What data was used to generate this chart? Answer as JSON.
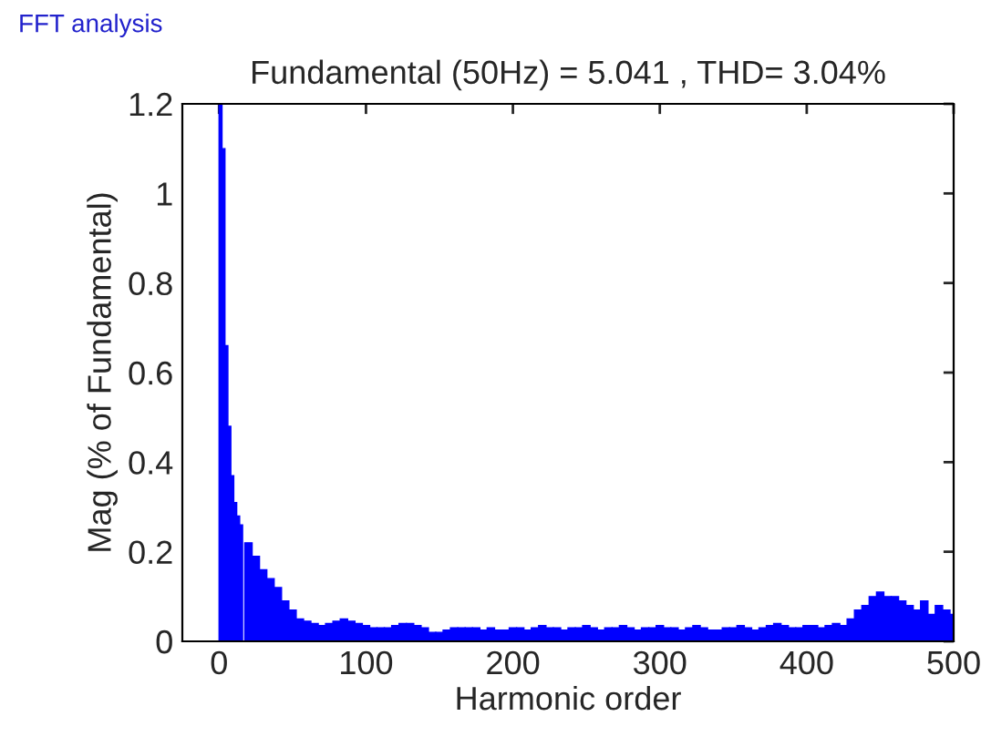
{
  "chart_data": {
    "type": "bar",
    "title": "Fundamental (50Hz) = 5.041 , THD= 3.04%",
    "xlabel": "Harmonic order",
    "ylabel": "Mag (% of Fundamental)",
    "annotations": [
      "FFT analysis"
    ],
    "x": [
      1,
      3,
      5,
      7,
      9,
      11,
      13,
      15,
      20,
      25,
      30,
      35,
      40,
      45,
      50,
      55,
      60,
      65,
      70,
      75,
      80,
      85,
      90,
      95,
      100,
      105,
      110,
      115,
      120,
      125,
      130,
      135,
      140,
      145,
      150,
      155,
      160,
      165,
      170,
      175,
      180,
      185,
      190,
      195,
      200,
      205,
      210,
      215,
      220,
      225,
      230,
      235,
      240,
      245,
      250,
      255,
      260,
      265,
      270,
      275,
      280,
      285,
      290,
      295,
      300,
      305,
      310,
      315,
      320,
      325,
      330,
      335,
      340,
      345,
      350,
      355,
      360,
      365,
      370,
      375,
      380,
      385,
      390,
      395,
      400,
      405,
      410,
      415,
      420,
      425,
      430,
      435,
      440,
      445,
      450,
      455,
      460,
      465,
      470,
      475,
      480,
      485,
      490,
      495,
      500
    ],
    "values": [
      1.2,
      1.1,
      0.66,
      0.48,
      0.37,
      0.31,
      0.28,
      0.26,
      0.22,
      0.19,
      0.16,
      0.14,
      0.12,
      0.09,
      0.07,
      0.05,
      0.045,
      0.04,
      0.035,
      0.04,
      0.045,
      0.05,
      0.045,
      0.04,
      0.035,
      0.03,
      0.03,
      0.03,
      0.035,
      0.04,
      0.04,
      0.035,
      0.03,
      0.02,
      0.02,
      0.025,
      0.03,
      0.03,
      0.03,
      0.03,
      0.025,
      0.03,
      0.025,
      0.025,
      0.03,
      0.03,
      0.025,
      0.03,
      0.035,
      0.03,
      0.03,
      0.025,
      0.03,
      0.03,
      0.035,
      0.03,
      0.025,
      0.03,
      0.03,
      0.035,
      0.03,
      0.025,
      0.03,
      0.03,
      0.035,
      0.03,
      0.03,
      0.025,
      0.03,
      0.035,
      0.03,
      0.025,
      0.025,
      0.03,
      0.03,
      0.035,
      0.03,
      0.025,
      0.03,
      0.035,
      0.04,
      0.035,
      0.03,
      0.03,
      0.035,
      0.035,
      0.03,
      0.035,
      0.04,
      0.035,
      0.05,
      0.07,
      0.08,
      0.1,
      0.11,
      0.1,
      0.1,
      0.09,
      0.08,
      0.07,
      0.09,
      0.06,
      0.08,
      0.07,
      0.06
    ],
    "color": "#0000ff",
    "xlim": [
      -25,
      500
    ],
    "xticks": [
      0,
      100,
      200,
      300,
      400,
      500
    ],
    "ylim": [
      0,
      1.2
    ],
    "yticks": [
      0,
      0.2,
      0.4,
      0.6,
      0.8,
      1,
      1.2
    ]
  }
}
